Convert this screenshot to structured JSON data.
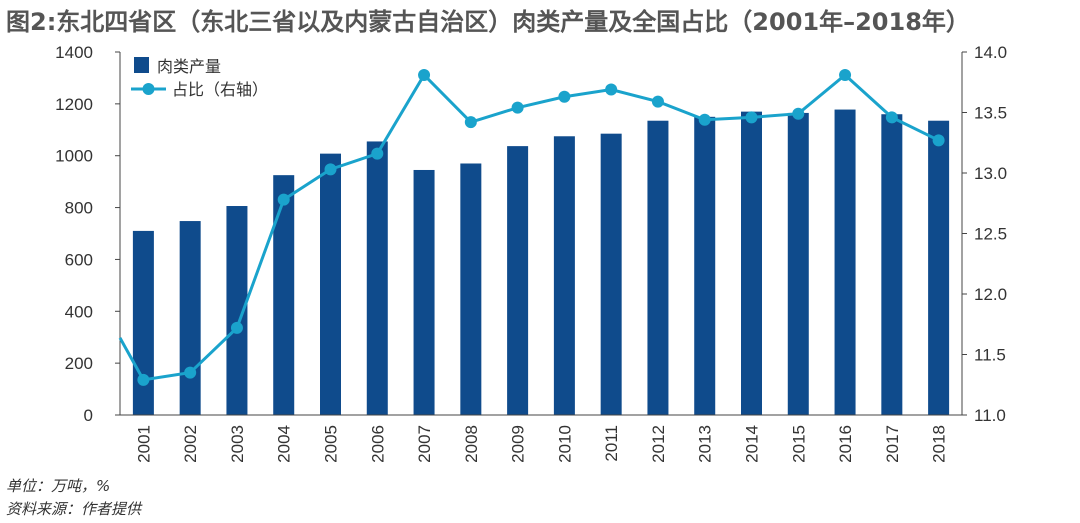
{
  "title": "图2:东北四省区（东北三省以及内蒙古自治区）肉类产量及全国占比（2001年–2018年）",
  "notes": {
    "unit": "单位：万吨，%",
    "source": "资料来源：作者提供"
  },
  "chart_data": {
    "type": "bar",
    "categories": [
      "2001",
      "2002",
      "2003",
      "2004",
      "2005",
      "2006",
      "2007",
      "2008",
      "2009",
      "2010",
      "2011",
      "2012",
      "2013",
      "2014",
      "2015",
      "2016",
      "2017",
      "2018"
    ],
    "series": [
      {
        "name": "肉类产量",
        "type": "bar",
        "axis": "left",
        "color": "#0f4b8c",
        "values": [
          710,
          748,
          806,
          925,
          1008,
          1055,
          945,
          970,
          1037,
          1075,
          1085,
          1135,
          1150,
          1170,
          1165,
          1178,
          1160,
          1135
        ]
      },
      {
        "name": "占比（右轴）",
        "type": "line",
        "axis": "right",
        "color": "#1aa3cc",
        "values": [
          11.29,
          11.35,
          11.72,
          12.78,
          13.03,
          13.16,
          13.81,
          13.42,
          13.54,
          13.63,
          13.69,
          13.59,
          13.44,
          13.46,
          13.49,
          13.81,
          13.46,
          13.27
        ]
      }
    ],
    "y_left": {
      "min": 0,
      "max": 1400,
      "ticks": [
        "0",
        "200",
        "400",
        "600",
        "800",
        "1000",
        "1200",
        "1400"
      ]
    },
    "y_right": {
      "min": 11.0,
      "max": 14.0,
      "ticks": [
        "11.0",
        "11.5",
        "12.0",
        "12.5",
        "13.0",
        "13.5",
        "14.0"
      ]
    },
    "grid": false,
    "legend_position": "top-left"
  }
}
